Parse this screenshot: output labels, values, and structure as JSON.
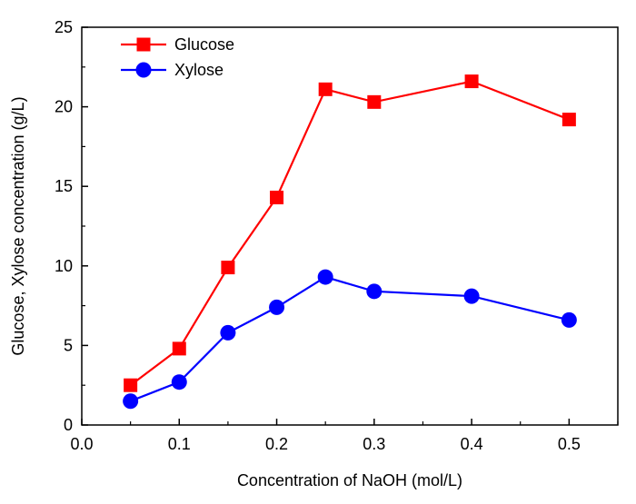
{
  "chart_data": {
    "type": "line",
    "title": "",
    "xlabel": "Concentration of NaOH (mol/L)",
    "ylabel": "Glucose, Xylose concentration (g/L)",
    "xlim": [
      0.0,
      0.55
    ],
    "ylim": [
      0,
      25
    ],
    "xticks": [
      0.0,
      0.1,
      0.2,
      0.3,
      0.4,
      0.5
    ],
    "yticks": [
      0,
      5,
      10,
      15,
      20,
      25
    ],
    "xtick_labels": [
      "0.0",
      "0.1",
      "0.2",
      "0.3",
      "0.4",
      "0.5"
    ],
    "ytick_labels": [
      "0",
      "5",
      "10",
      "15",
      "20",
      "25"
    ],
    "grid": false,
    "legend_position": "top-left",
    "x": [
      0.05,
      0.1,
      0.15,
      0.2,
      0.25,
      0.3,
      0.4,
      0.5
    ],
    "series": [
      {
        "name": "Glucose",
        "marker": "square",
        "color": "#ff0000",
        "values": [
          2.5,
          4.8,
          9.9,
          14.3,
          21.1,
          20.3,
          21.6,
          19.2
        ]
      },
      {
        "name": "Xylose",
        "marker": "circle",
        "color": "#0000ff",
        "values": [
          1.5,
          2.7,
          5.8,
          7.4,
          9.3,
          8.4,
          8.1,
          6.6
        ]
      }
    ]
  }
}
